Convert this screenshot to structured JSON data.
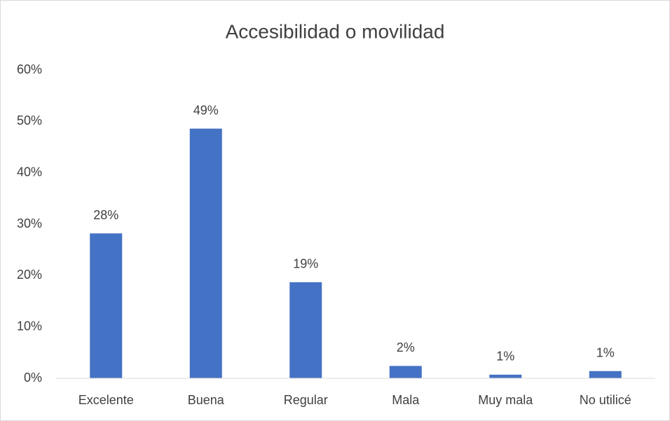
{
  "chart_data": {
    "type": "bar",
    "title": "Accesibilidad o movilidad",
    "categories": [
      "Excelente",
      "Buena",
      "Regular",
      "Mala",
      "Muy mala",
      "No utilicé"
    ],
    "values": [
      28.2,
      48.6,
      18.7,
      2.4,
      0.7,
      1.4
    ],
    "value_labels": [
      "28%",
      "49%",
      "19%",
      "2%",
      "1%",
      "1%"
    ],
    "color": "#4472c4",
    "ylim": [
      0,
      60
    ],
    "yticks": [
      {
        "value": 0,
        "label": "0%"
      },
      {
        "value": 10,
        "label": "10%"
      },
      {
        "value": 20,
        "label": "20%"
      },
      {
        "value": 30,
        "label": "30%"
      },
      {
        "value": 40,
        "label": "40%"
      },
      {
        "value": 50,
        "label": "50%"
      },
      {
        "value": 60,
        "label": "60%"
      }
    ],
    "grid": false
  }
}
